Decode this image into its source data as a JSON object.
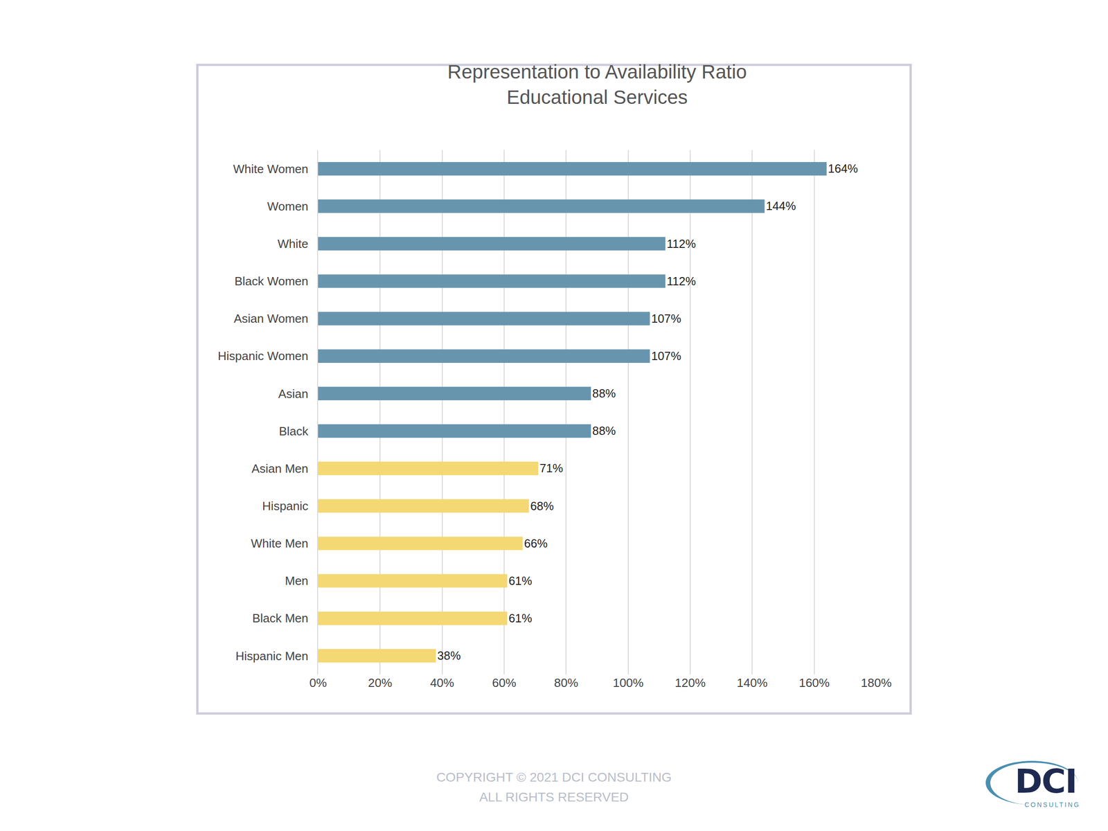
{
  "chart_data": {
    "type": "bar",
    "orientation": "horizontal",
    "title": "Representation to Availability Ratio",
    "subtitle": "Educational Services",
    "categories": [
      "White Women",
      "Women",
      "White",
      "Black Women",
      "Asian Women",
      "Hispanic Women",
      "Asian",
      "Black",
      "Asian Men",
      "Hispanic",
      "White Men",
      "Men",
      "Black Men",
      "Hispanic Men"
    ],
    "values": [
      164,
      144,
      112,
      112,
      107,
      107,
      88,
      88,
      71,
      68,
      66,
      61,
      61,
      38
    ],
    "value_labels": [
      "164%",
      "144%",
      "112%",
      "112%",
      "107%",
      "107%",
      "88%",
      "88%",
      "71%",
      "68%",
      "66%",
      "61%",
      "61%",
      "38%"
    ],
    "colors": [
      "#6895ae",
      "#6895ae",
      "#6895ae",
      "#6895ae",
      "#6895ae",
      "#6895ae",
      "#6895ae",
      "#6895ae",
      "#f4d873",
      "#f4d873",
      "#f4d873",
      "#f4d873",
      "#f4d873",
      "#f4d873"
    ],
    "xlim": [
      0,
      180
    ],
    "xticks": [
      {
        "value": 0,
        "label": "0%"
      },
      {
        "value": 20,
        "label": "20%"
      },
      {
        "value": 40,
        "label": "40%"
      },
      {
        "value": 60,
        "label": "60%"
      },
      {
        "value": 80,
        "label": "80%"
      },
      {
        "value": 100,
        "label": "100%"
      },
      {
        "value": 120,
        "label": "120%"
      },
      {
        "value": 140,
        "label": "140%"
      },
      {
        "value": 160,
        "label": "160%"
      },
      {
        "value": 180,
        "label": "180%"
      }
    ],
    "grid": true,
    "data_labels": true,
    "annotations": [
      "COPYRIGHT © 2021 DCI CONSULTING",
      "ALL RIGHTS RESERVED",
      "DCI",
      "CONSULTING"
    ]
  }
}
